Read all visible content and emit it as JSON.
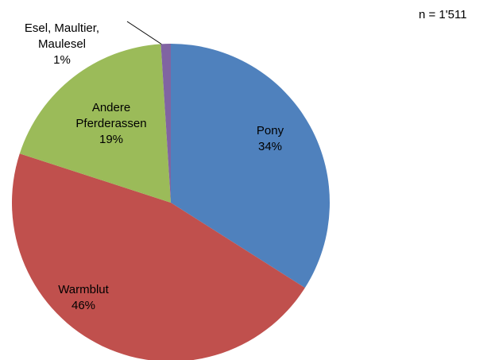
{
  "chart_data": {
    "type": "pie",
    "categories": [
      "Pony",
      "Warmblut",
      "Andere Pferderassen",
      "Esel, Maultier, Maulesel"
    ],
    "values": [
      34,
      46,
      19,
      1
    ],
    "value_labels": [
      "34%",
      "46%",
      "19%",
      "1%"
    ],
    "colors": [
      "#4f81bd",
      "#c0504d",
      "#9bbb59",
      "#8064a2"
    ],
    "annotation": "n = 1'511"
  }
}
